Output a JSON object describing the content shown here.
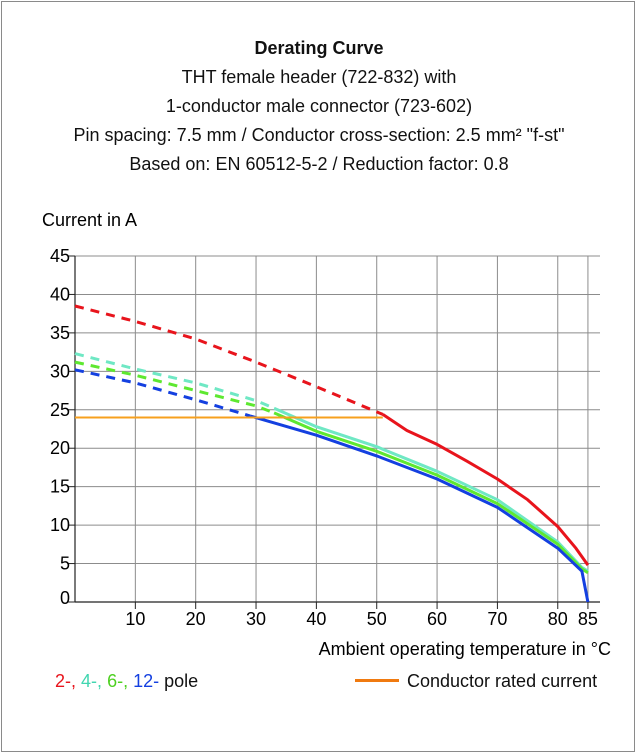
{
  "chart_data": {
    "type": "line",
    "title": "Derating Curve",
    "subtitle_lines": [
      "THT female header (722-832) with",
      "1-conductor male connector  (723-602)",
      "Pin spacing: 7.5 mm / Conductor cross-section: 2.5 mm² \"f-st\"",
      "Based on: EN 60512-5-2 / Reduction factor: 0.8"
    ],
    "ylabel": "Current in A",
    "xlabel": "Ambient operating temperature in °C",
    "xlim": [
      0,
      87
    ],
    "ylim": [
      0,
      45
    ],
    "x_ticks": [
      "10",
      "20",
      "30",
      "40",
      "50",
      "60",
      "70",
      "80",
      "85"
    ],
    "y_ticks": [
      "0",
      "5",
      "10",
      "15",
      "20",
      "25",
      "30",
      "35",
      "40",
      "45"
    ],
    "grid": true,
    "series": [
      {
        "name": "2-",
        "color": "#e8141c",
        "dashed": [
          [
            0,
            38.5
          ],
          [
            10,
            36.5
          ],
          [
            20,
            34.2
          ],
          [
            30,
            31.2
          ],
          [
            40,
            28.0
          ],
          [
            51,
            24.4
          ]
        ],
        "solid": [
          [
            51,
            24.4
          ],
          [
            55,
            22.3
          ],
          [
            60,
            20.5
          ],
          [
            65,
            18.3
          ],
          [
            70,
            16.0
          ],
          [
            75,
            13.3
          ],
          [
            80,
            9.8
          ],
          [
            83,
            7.0
          ],
          [
            85,
            4.8
          ]
        ]
      },
      {
        "name": "4-",
        "color": "#6fe8c4",
        "dashed": [
          [
            0,
            32.3
          ],
          [
            10,
            30.3
          ],
          [
            20,
            28.5
          ],
          [
            30,
            26.2
          ],
          [
            33,
            25.2
          ]
        ],
        "solid": [
          [
            33,
            25.2
          ],
          [
            40,
            22.8
          ],
          [
            50,
            20.2
          ],
          [
            60,
            17.0
          ],
          [
            70,
            13.3
          ],
          [
            80,
            7.8
          ],
          [
            84,
            4.5
          ],
          [
            85,
            4.0
          ]
        ]
      },
      {
        "name": "6-",
        "color": "#5ee830",
        "dashed": [
          [
            0,
            31.2
          ],
          [
            10,
            29.5
          ],
          [
            20,
            27.5
          ],
          [
            30,
            25.5
          ],
          [
            33,
            24.6
          ]
        ],
        "solid": [
          [
            33,
            24.6
          ],
          [
            40,
            22.2
          ],
          [
            50,
            19.6
          ],
          [
            60,
            16.5
          ],
          [
            70,
            12.8
          ],
          [
            80,
            7.5
          ],
          [
            84,
            4.3
          ],
          [
            85,
            3.8
          ]
        ]
      },
      {
        "name": "12-",
        "color": "#1440e0",
        "dashed": [
          [
            0,
            30.2
          ],
          [
            10,
            28.5
          ],
          [
            20,
            26.3
          ],
          [
            29,
            24.2
          ]
        ],
        "solid": [
          [
            29,
            24.2
          ],
          [
            40,
            21.7
          ],
          [
            50,
            19.0
          ],
          [
            60,
            16.0
          ],
          [
            70,
            12.3
          ],
          [
            80,
            7.0
          ],
          [
            84,
            4.0
          ],
          [
            85,
            0.0
          ]
        ]
      },
      {
        "name": "Conductor rated current",
        "color": "#f7a01e",
        "solid": [
          [
            0,
            24.0
          ],
          [
            51,
            24.0
          ]
        ]
      }
    ],
    "legend": {
      "pole_labels": [
        {
          "text": "2-",
          "color": "#e8141c"
        },
        {
          "text": ", ",
          "color": "#e8141c"
        },
        {
          "text": "4-",
          "color": "#41d6b0"
        },
        {
          "text": ", ",
          "color": "#41d6b0"
        },
        {
          "text": "6-",
          "color": "#4dd020"
        },
        {
          "text": ", ",
          "color": "#4dd020"
        },
        {
          "text": "12-",
          "color": "#1440e0"
        }
      ],
      "pole_suffix": " pole",
      "rated_label": "Conductor rated current",
      "rated_color": "#f07a10",
      "placement": "bottom"
    }
  }
}
